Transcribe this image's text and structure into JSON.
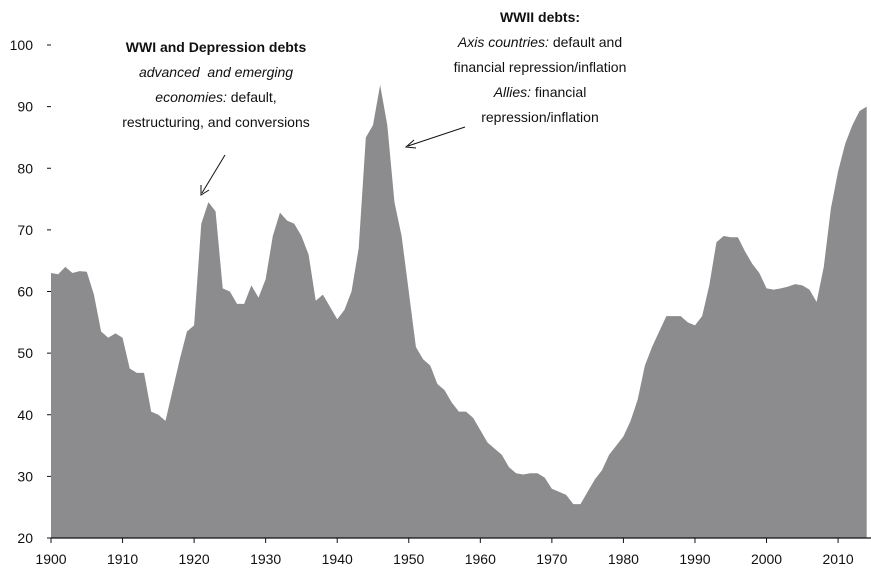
{
  "chart_data": {
    "type": "area",
    "x": [
      1900,
      1901,
      1902,
      1903,
      1904,
      1905,
      1906,
      1907,
      1908,
      1909,
      1910,
      1911,
      1912,
      1913,
      1914,
      1915,
      1916,
      1917,
      1918,
      1919,
      1920,
      1921,
      1922,
      1923,
      1924,
      1925,
      1926,
      1927,
      1928,
      1929,
      1930,
      1931,
      1932,
      1933,
      1934,
      1935,
      1936,
      1937,
      1938,
      1939,
      1940,
      1941,
      1942,
      1943,
      1944,
      1945,
      1946,
      1947,
      1948,
      1949,
      1950,
      1951,
      1952,
      1953,
      1954,
      1955,
      1956,
      1957,
      1958,
      1959,
      1960,
      1961,
      1962,
      1963,
      1964,
      1965,
      1966,
      1967,
      1968,
      1969,
      1970,
      1971,
      1972,
      1973,
      1974,
      1975,
      1976,
      1977,
      1978,
      1979,
      1980,
      1981,
      1982,
      1983,
      1984,
      1985,
      1986,
      1987,
      1988,
      1989,
      1990,
      1991,
      1992,
      1993,
      1994,
      1995,
      1996,
      1997,
      1998,
      1999,
      2000,
      2001,
      2002,
      2003,
      2004,
      2005,
      2006,
      2007,
      2008,
      2009,
      2010,
      2011,
      2012,
      2013,
      2014
    ],
    "values": [
      63,
      62.8,
      64,
      63,
      63.3,
      63.2,
      59.5,
      53.5,
      52.5,
      53.2,
      52.5,
      47.5,
      46.8,
      46.8,
      40.5,
      40,
      39,
      44,
      49,
      53.5,
      54.5,
      71,
      74.5,
      73,
      60.5,
      60,
      58,
      58,
      61,
      59,
      62,
      69,
      72.8,
      71.5,
      71,
      69,
      66,
      58.5,
      59.5,
      57.5,
      55.5,
      57,
      60,
      67,
      85,
      87,
      93.5,
      87,
      74.5,
      69,
      60,
      51,
      49,
      48,
      45,
      44,
      42,
      40.5,
      40.5,
      39.5,
      37.5,
      35.5,
      34.5,
      33.5,
      31.5,
      30.5,
      30.3,
      30.5,
      30.5,
      29.8,
      28,
      27.5,
      27,
      25.5,
      25.5,
      27.5,
      29.5,
      31,
      33.5,
      35,
      36.5,
      39,
      42.5,
      48,
      51,
      53.5,
      56,
      56,
      56,
      55,
      54.5,
      56,
      61,
      68,
      69,
      68.8,
      68.8,
      66.5,
      64.5,
      63,
      60.5,
      60.3,
      60.5,
      60.8,
      61.2,
      61,
      60.3,
      58.3,
      64,
      73.5,
      79.5,
      84,
      87,
      89.3,
      90
    ],
    "color": "#8c8c8e",
    "xlim": [
      1900,
      2014
    ],
    "xticks": [
      1900,
      1910,
      1920,
      1930,
      1940,
      1950,
      1960,
      1970,
      1980,
      1990,
      2000,
      2010
    ],
    "ylim": [
      20,
      100
    ],
    "yticks": [
      20,
      30,
      40,
      50,
      60,
      70,
      80,
      90,
      100
    ],
    "annotations": [
      {
        "lines": [
          [
            {
              "text": "WWI and Depression debts",
              "style": "bold"
            }
          ],
          [
            {
              "text": "advanced  and emerging",
              "style": "italic"
            }
          ],
          [
            {
              "text": "economies:",
              "style": "italic"
            },
            {
              "text": " default,",
              "style": "normal"
            }
          ],
          [
            {
              "text": "restructuring, and conversions",
              "style": "normal"
            }
          ]
        ]
      },
      {
        "lines": [
          [
            {
              "text": "WWII debts:",
              "style": "bold"
            }
          ],
          [
            {
              "text": "Axis countries:",
              "style": "italic"
            },
            {
              "text": " default and",
              "style": "normal"
            }
          ],
          [
            {
              "text": "financial repression/inflation",
              "style": "normal"
            }
          ],
          [
            {
              "text": "Allies:",
              "style": "italic"
            },
            {
              "text": " financial",
              "style": "normal"
            }
          ],
          [
            {
              "text": "repression/inflation",
              "style": "normal"
            }
          ]
        ]
      }
    ]
  }
}
